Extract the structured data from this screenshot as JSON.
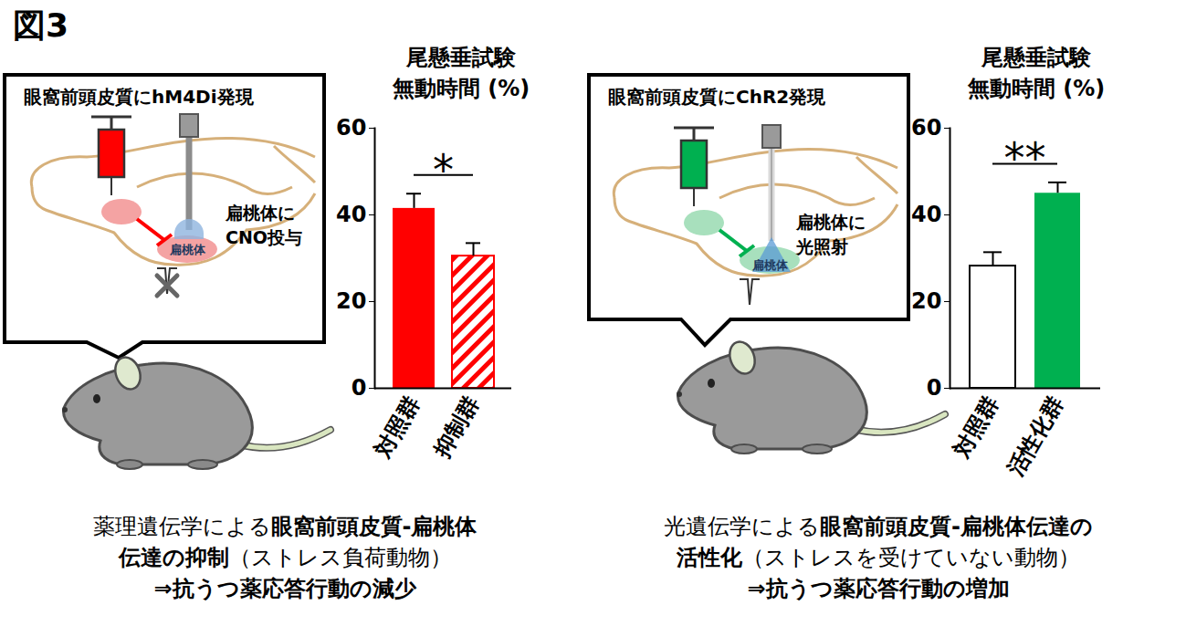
{
  "title": "図3",
  "chart_data": [
    {
      "type": "bar",
      "title": [
        "尾懸垂試験",
        "無動時間 (%)"
      ],
      "categories": [
        "対照群",
        "抑制群"
      ],
      "values": [
        41.5,
        30.5
      ],
      "errors": [
        3.4,
        3.0
      ],
      "colors": [
        "#ff0000",
        "#ff0000"
      ],
      "hatch": [
        false,
        true
      ],
      "ylim": [
        0,
        60
      ],
      "yticks": [
        0,
        20,
        40,
        60
      ],
      "grid": false,
      "annotations": [
        {
          "text": "*",
          "from": "対照群",
          "to": "抑制群"
        }
      ]
    },
    {
      "type": "bar",
      "title": [
        "尾懸垂試験",
        "無動時間 (%)"
      ],
      "categories": [
        "対照群",
        "活性化群"
      ],
      "values": [
        28.2,
        45.0
      ],
      "errors": [
        3.2,
        2.5
      ],
      "colors": [
        "#ffffff",
        "#00b050"
      ],
      "hatch": [
        false,
        false
      ],
      "ylim": [
        0,
        60
      ],
      "yticks": [
        0,
        20,
        40,
        60
      ],
      "grid": false,
      "annotations": [
        {
          "text": "**",
          "from": "対照群",
          "to": "活性化群"
        }
      ]
    }
  ],
  "panels": [
    {
      "diagram": {
        "expression": "眼窩前頭皮質にhM4Di発現",
        "manipulation": [
          "扁桃体に",
          "CNO投与"
        ],
        "region": "扁桃体"
      },
      "caption": [
        [
          {
            "text": "薬理遺伝学による",
            "bold": false
          },
          {
            "text": "眼窩前頭皮質-扁桃体",
            "bold": true
          }
        ],
        [
          {
            "text": "伝達の抑制",
            "bold": true
          },
          {
            "text": "（ストレス負荷動物）",
            "bold": false
          }
        ],
        [
          {
            "text": "⇒抗うつ薬応答行動の減少",
            "bold": true
          }
        ]
      ]
    },
    {
      "diagram": {
        "expression": "眼窩前頭皮質にChR2発現",
        "manipulation": [
          "扁桃体に",
          "光照射"
        ],
        "region": "扁桃体"
      },
      "caption": [
        [
          {
            "text": "光遺伝学による",
            "bold": false
          },
          {
            "text": "眼窩前頭皮質-扁桃体伝達の",
            "bold": true
          }
        ],
        [
          {
            "text": "活性化",
            "bold": true
          },
          {
            "text": "（ストレスを受けていない動物）",
            "bold": false
          }
        ],
        [
          {
            "text": "⇒抗うつ薬応答行動の増加",
            "bold": true
          }
        ]
      ]
    }
  ]
}
